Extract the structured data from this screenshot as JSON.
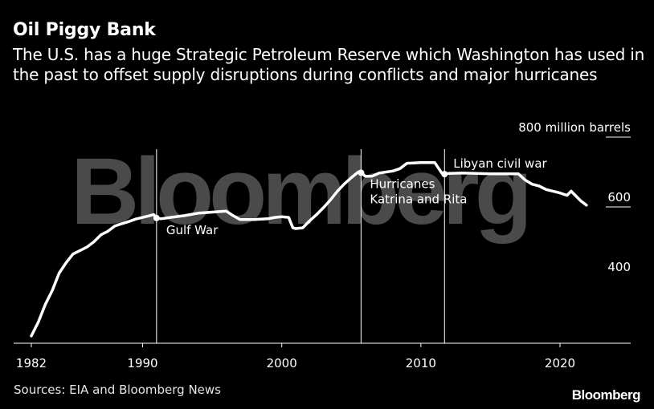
{
  "header": {
    "title": "Oil Piggy Bank",
    "subtitle": "The U.S. has a huge Strategic Petroleum Reserve which Washington has used in the past to offset supply disruptions during conflicts and major hurricanes"
  },
  "watermark": "Bloomberg",
  "footer": {
    "source": "Sources: EIA and Bloomberg News",
    "brand": "Bloomberg"
  },
  "colors": {
    "background": "#000000",
    "line": "#ffffff",
    "watermark": "#4a4a4a"
  },
  "chart_data": {
    "type": "line",
    "title": "Oil Piggy Bank",
    "ylabel": "",
    "unit_label": "800 million barrels",
    "xlim": [
      1981.5,
      2026
    ],
    "ylim": [
      200,
      800
    ],
    "y_ticks": [
      {
        "value": 400,
        "label": "400"
      },
      {
        "value": 600,
        "label": "600"
      },
      {
        "value": 800,
        "label": "800 million barrels"
      }
    ],
    "x_ticks": [
      {
        "value": 1982,
        "label": "1982"
      },
      {
        "value": 1990,
        "label": "1990"
      },
      {
        "value": 2000,
        "label": "2000"
      },
      {
        "value": 2010,
        "label": "2010"
      },
      {
        "value": 2020,
        "label": "2020"
      }
    ],
    "grid": false,
    "series": [
      {
        "name": "",
        "x": [
          1982.0,
          1982.5,
          1983.0,
          1983.5,
          1984.0,
          1984.5,
          1985.0,
          1985.5,
          1986.0,
          1986.5,
          1987.0,
          1987.5,
          1988.0,
          1988.5,
          1989.0,
          1989.5,
          1990.0,
          1990.5,
          1990.8,
          1991.0,
          1991.3,
          1991.7,
          1992.0,
          1993.0,
          1994.0,
          1995.0,
          1996.0,
          1996.5,
          1997.0,
          1998.0,
          1999.0,
          1999.5,
          2000.0,
          2000.5,
          2000.8,
          2001.0,
          2001.5,
          2002.0,
          2002.5,
          2003.0,
          2003.5,
          2004.0,
          2004.5,
          2005.0,
          2005.5,
          2005.7,
          2006.0,
          2006.5,
          2007.0,
          2007.5,
          2008.0,
          2008.5,
          2009.0,
          2009.5,
          2010.0,
          2010.5,
          2011.0,
          2011.5,
          2011.7,
          2012.0,
          2013.0,
          2014.0,
          2015.0,
          2016.0,
          2017.0,
          2017.5,
          2018.0,
          2018.5,
          2019.0,
          2019.5,
          2020.0,
          2020.5,
          2020.8,
          2021.0,
          2021.5,
          2021.9
        ],
        "values": [
          230,
          270,
          320,
          360,
          410,
          440,
          465,
          475,
          485,
          500,
          520,
          530,
          545,
          552,
          558,
          565,
          570,
          575,
          578,
          568,
          566,
          568,
          570,
          575,
          582,
          585,
          588,
          575,
          564,
          564,
          566,
          570,
          572,
          570,
          540,
          538,
          540,
          560,
          578,
          598,
          620,
          645,
          666,
          684,
          700,
          698,
          688,
          688,
          697,
          700,
          703,
          710,
          725,
          726,
          727,
          727,
          727,
          697,
          694,
          696,
          697,
          696,
          695,
          695,
          695,
          677,
          665,
          660,
          650,
          645,
          640,
          633,
          645,
          637,
          617,
          605
        ]
      }
    ],
    "annotations": [
      {
        "label": "Gulf War",
        "x": 1991.0,
        "y": 568
      },
      {
        "label": "Hurricanes",
        "label2": "Katrina and Rita",
        "x": 2005.7,
        "y": 698
      },
      {
        "label": "Libyan civil war",
        "x": 2011.7,
        "y": 694
      }
    ]
  }
}
